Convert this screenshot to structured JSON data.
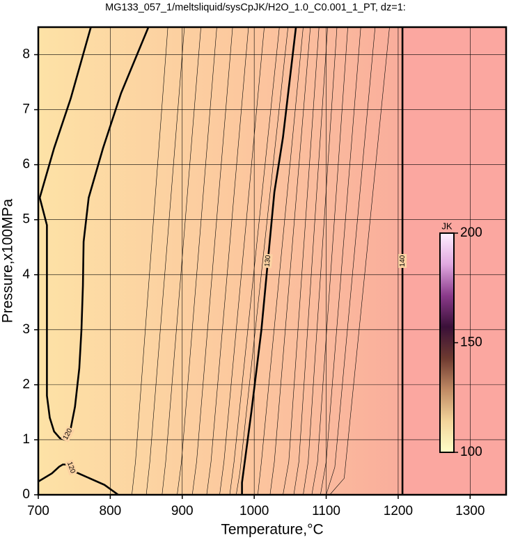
{
  "chart_data": {
    "type": "contour",
    "title": "MG133_057_1/meltsliquid/sysCpJK/H2O_1.0_C0.001_1_PT, dz=1:",
    "x_label": "Temperature,°C",
    "y_label": "Pressure,x100MPa",
    "xlim": [
      700,
      1350
    ],
    "ylim": [
      0,
      8.5
    ],
    "xticks": [
      700,
      800,
      900,
      1000,
      1100,
      1200,
      1300
    ],
    "yticks": [
      0,
      1,
      2,
      3,
      4,
      5,
      6,
      7,
      8
    ],
    "grid": true,
    "line_color": "#000000",
    "contours": [
      {
        "level": 120,
        "labeled": true,
        "x": [
          773,
          745,
          722,
          702,
          712,
          712,
          712,
          716,
          722,
          730,
          737,
          745,
          751,
          757,
          760,
          762,
          763,
          770,
          790,
          815,
          853
        ],
        "y": [
          8.5,
          7.2,
          6.3,
          5.4,
          4.9,
          3.8,
          1.8,
          1.4,
          1.15,
          1.03,
          1.0,
          1.2,
          1.6,
          2.3,
          3.0,
          3.8,
          4.6,
          5.4,
          6.3,
          7.3,
          8.5
        ]
      },
      {
        "level": 120,
        "labeled": true,
        "x": [
          700,
          719,
          729,
          734,
          744,
          747,
          759,
          792,
          811
        ],
        "y": [
          0.24,
          0.39,
          0.51,
          0.55,
          0.55,
          0.44,
          0.37,
          0.18,
          0.0
        ]
      },
      {
        "level": 130,
        "labeled": true,
        "x": [
          983,
          983,
          996,
          1010,
          1028,
          1040,
          1058
        ],
        "y": [
          0.0,
          0.22,
          1.5,
          3.0,
          5.5,
          6.5,
          8.5
        ]
      },
      {
        "level": 140,
        "labeled": true,
        "x": [
          1206,
          1206
        ],
        "y": [
          0.0,
          8.5
        ]
      },
      {
        "level": 121,
        "labeled": false,
        "x": [
          830,
          835,
          880
        ],
        "y": [
          0,
          0.6,
          8.5
        ]
      },
      {
        "level": 122,
        "labeled": false,
        "x": [
          850,
          855,
          903
        ],
        "y": [
          0,
          0.6,
          8.5
        ]
      },
      {
        "level": 123,
        "labeled": false,
        "x": [
          872,
          877,
          926
        ],
        "y": [
          0,
          0.6,
          8.5
        ]
      },
      {
        "level": 124,
        "labeled": false,
        "x": [
          893,
          899,
          948
        ],
        "y": [
          0,
          0.6,
          8.5
        ]
      },
      {
        "level": 125,
        "labeled": false,
        "x": [
          914,
          920,
          970
        ],
        "y": [
          0,
          0.6,
          8.5
        ]
      },
      {
        "level": 126,
        "labeled": false,
        "x": [
          934,
          940,
          992
        ],
        "y": [
          0,
          0.6,
          8.5
        ]
      },
      {
        "level": 127,
        "labeled": false,
        "x": [
          952,
          958,
          1014
        ],
        "y": [
          0,
          0.6,
          8.5
        ]
      },
      {
        "level": 128,
        "labeled": false,
        "x": [
          966,
          972,
          1035
        ],
        "y": [
          0,
          0.6,
          8.5
        ]
      },
      {
        "level": 129,
        "labeled": false,
        "x": [
          975,
          980,
          1047
        ],
        "y": [
          0,
          0.4,
          8.5
        ]
      },
      {
        "level": 131,
        "labeled": false,
        "x": [
          1005,
          1010,
          1068
        ],
        "y": [
          0,
          0.6,
          8.5
        ]
      },
      {
        "level": 132,
        "labeled": false,
        "x": [
          1022,
          1028,
          1078
        ],
        "y": [
          0,
          0.6,
          8.5
        ]
      },
      {
        "level": 133,
        "labeled": false,
        "x": [
          1040,
          1048,
          1090
        ],
        "y": [
          0,
          0.6,
          8.5
        ]
      },
      {
        "level": 134,
        "labeled": false,
        "x": [
          1055,
          1062,
          1102
        ],
        "y": [
          0,
          0.6,
          8.5
        ]
      },
      {
        "level": 135,
        "labeled": false,
        "x": [
          1068,
          1075,
          1115
        ],
        "y": [
          0,
          0.6,
          8.5
        ]
      },
      {
        "level": 136,
        "labeled": false,
        "x": [
          1080,
          1088,
          1130
        ],
        "y": [
          0,
          0.6,
          8.5
        ]
      },
      {
        "level": 137,
        "labeled": false,
        "x": [
          1092,
          1100,
          1148
        ],
        "y": [
          0,
          0.6,
          8.5
        ]
      },
      {
        "level": 138,
        "labeled": false,
        "x": [
          1100,
          1112,
          1168
        ],
        "y": [
          0,
          0.5,
          8.5
        ]
      },
      {
        "level": 139,
        "labeled": false,
        "x": [
          1105,
          1125,
          1188
        ],
        "y": [
          0,
          0.3,
          8.5
        ]
      }
    ],
    "colorbar": {
      "label": "JK",
      "lim": [
        100,
        200
      ],
      "ticks": [
        100,
        150,
        200
      ],
      "colors": [
        "#ffffc8",
        "#f2d49a",
        "#c08a64",
        "#6e3a30",
        "#3a1038",
        "#8a3a8a",
        "#e0a8e0",
        "#fff0ff"
      ]
    }
  }
}
